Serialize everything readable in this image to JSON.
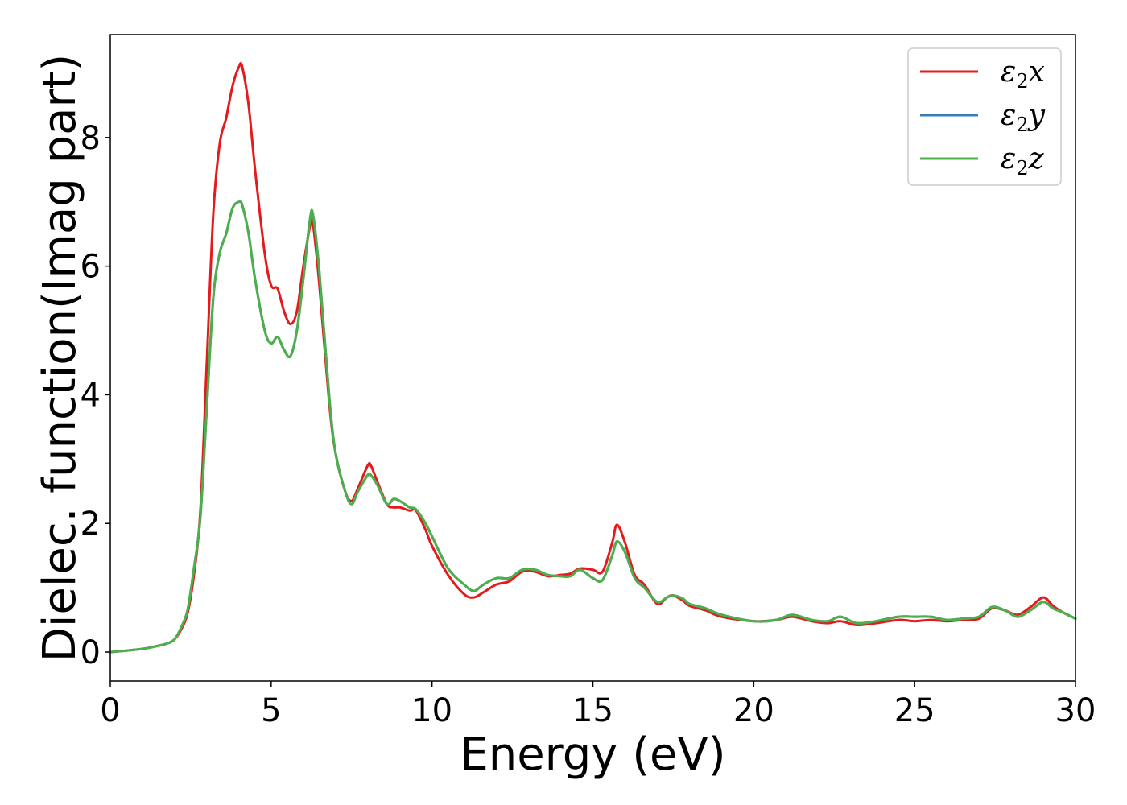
{
  "chart_data": {
    "type": "line",
    "xlabel": "Energy (eV)",
    "ylabel": "Dielec. function(Imag part)",
    "xlim": [
      0,
      30
    ],
    "ylim": [
      -0.45,
      9.6
    ],
    "xticks": [
      0,
      5,
      10,
      15,
      20,
      25,
      30
    ],
    "yticks": [
      0,
      2,
      4,
      6,
      8
    ],
    "grid": false,
    "legend_position": "top-right",
    "series": [
      {
        "name": "ε₂x",
        "legend_main": "ε",
        "legend_sub": "2",
        "legend_tail": "x",
        "color": "#e41a1c",
        "x": [
          0,
          1,
          1.5,
          1.8,
          2.0,
          2.2,
          2.4,
          2.6,
          2.8,
          3.0,
          3.2,
          3.4,
          3.6,
          3.8,
          4.0,
          4.1,
          4.3,
          4.5,
          4.8,
          5.0,
          5.2,
          5.4,
          5.6,
          5.8,
          6.0,
          6.2,
          6.3,
          6.5,
          6.8,
          7.0,
          7.3,
          7.5,
          7.7,
          8.0,
          8.1,
          8.3,
          8.6,
          8.8,
          9.0,
          9.3,
          9.5,
          9.8,
          10.0,
          10.5,
          11.0,
          11.3,
          11.6,
          12.0,
          12.4,
          12.8,
          13.2,
          13.6,
          14.0,
          14.3,
          14.6,
          15.0,
          15.3,
          15.6,
          15.75,
          16.0,
          16.3,
          16.6,
          17.0,
          17.3,
          17.5,
          17.8,
          18.0,
          18.5,
          19.0,
          20.0,
          20.7,
          21.2,
          21.8,
          22.3,
          22.7,
          23.2,
          23.8,
          24.5,
          25.0,
          25.5,
          26.0,
          26.5,
          27.0,
          27.4,
          27.8,
          28.2,
          28.6,
          29.0,
          29.3,
          29.6,
          30.0
        ],
        "y": [
          0.0,
          0.05,
          0.1,
          0.14,
          0.2,
          0.35,
          0.6,
          1.2,
          2.2,
          4.5,
          6.8,
          7.9,
          8.3,
          8.8,
          9.1,
          9.1,
          8.5,
          7.5,
          6.2,
          5.7,
          5.65,
          5.3,
          5.1,
          5.3,
          6.0,
          6.6,
          6.65,
          5.7,
          3.9,
          3.1,
          2.5,
          2.35,
          2.55,
          2.9,
          2.9,
          2.65,
          2.3,
          2.25,
          2.25,
          2.2,
          2.2,
          1.9,
          1.65,
          1.2,
          0.9,
          0.85,
          0.93,
          1.05,
          1.1,
          1.25,
          1.25,
          1.18,
          1.2,
          1.22,
          1.3,
          1.28,
          1.25,
          1.7,
          1.98,
          1.7,
          1.2,
          1.05,
          0.75,
          0.85,
          0.88,
          0.8,
          0.72,
          0.65,
          0.55,
          0.48,
          0.5,
          0.55,
          0.48,
          0.45,
          0.48,
          0.42,
          0.45,
          0.5,
          0.48,
          0.5,
          0.48,
          0.5,
          0.52,
          0.68,
          0.65,
          0.58,
          0.7,
          0.85,
          0.72,
          0.62,
          0.52
        ]
      },
      {
        "name": "ε₂y",
        "legend_main": "ε",
        "legend_sub": "2",
        "legend_tail": "y",
        "color": "#377eb8",
        "x": [
          0,
          1,
          1.5,
          1.8,
          2.0,
          2.2,
          2.4,
          2.6,
          2.8,
          3.0,
          3.2,
          3.4,
          3.6,
          3.8,
          4.0,
          4.1,
          4.3,
          4.5,
          4.8,
          5.0,
          5.2,
          5.4,
          5.6,
          5.8,
          6.0,
          6.2,
          6.3,
          6.5,
          6.8,
          7.0,
          7.3,
          7.5,
          7.7,
          8.0,
          8.1,
          8.3,
          8.6,
          8.8,
          9.0,
          9.3,
          9.5,
          9.8,
          10.0,
          10.5,
          11.0,
          11.3,
          11.6,
          12.0,
          12.4,
          12.8,
          13.2,
          13.6,
          14.0,
          14.3,
          14.6,
          15.0,
          15.3,
          15.6,
          15.75,
          16.0,
          16.3,
          16.6,
          17.0,
          17.3,
          17.5,
          17.8,
          18.0,
          18.5,
          19.0,
          20.0,
          20.7,
          21.2,
          21.8,
          22.3,
          22.7,
          23.2,
          23.8,
          24.5,
          25.0,
          25.5,
          26.0,
          26.5,
          27.0,
          27.4,
          27.8,
          28.2,
          28.6,
          29.0,
          29.3,
          29.6,
          30.0
        ],
        "y": [
          0.0,
          0.05,
          0.1,
          0.14,
          0.2,
          0.38,
          0.65,
          1.3,
          2.1,
          3.8,
          5.5,
          6.2,
          6.5,
          6.9,
          7.0,
          6.95,
          6.5,
          5.8,
          5.0,
          4.8,
          4.9,
          4.7,
          4.6,
          5.0,
          5.8,
          6.7,
          6.8,
          5.9,
          4.0,
          3.1,
          2.5,
          2.3,
          2.5,
          2.75,
          2.75,
          2.6,
          2.3,
          2.38,
          2.35,
          2.25,
          2.22,
          2.0,
          1.8,
          1.3,
          1.05,
          0.95,
          1.05,
          1.15,
          1.15,
          1.28,
          1.28,
          1.2,
          1.18,
          1.18,
          1.28,
          1.15,
          1.12,
          1.5,
          1.72,
          1.55,
          1.15,
          1.0,
          0.78,
          0.85,
          0.88,
          0.83,
          0.75,
          0.68,
          0.58,
          0.48,
          0.5,
          0.58,
          0.5,
          0.48,
          0.55,
          0.45,
          0.48,
          0.55,
          0.55,
          0.55,
          0.5,
          0.52,
          0.55,
          0.7,
          0.65,
          0.55,
          0.65,
          0.78,
          0.68,
          0.62,
          0.52
        ]
      },
      {
        "name": "ε₂z",
        "legend_main": "ε",
        "legend_sub": "2",
        "legend_tail": "z",
        "color": "#4daf4a",
        "x": [
          0,
          1,
          1.5,
          1.8,
          2.0,
          2.2,
          2.4,
          2.6,
          2.8,
          3.0,
          3.2,
          3.4,
          3.6,
          3.8,
          4.0,
          4.1,
          4.3,
          4.5,
          4.8,
          5.0,
          5.2,
          5.4,
          5.6,
          5.8,
          6.0,
          6.2,
          6.3,
          6.5,
          6.8,
          7.0,
          7.3,
          7.5,
          7.7,
          8.0,
          8.1,
          8.3,
          8.6,
          8.8,
          9.0,
          9.3,
          9.5,
          9.8,
          10.0,
          10.5,
          11.0,
          11.3,
          11.6,
          12.0,
          12.4,
          12.8,
          13.2,
          13.6,
          14.0,
          14.3,
          14.6,
          15.0,
          15.3,
          15.6,
          15.75,
          16.0,
          16.3,
          16.6,
          17.0,
          17.3,
          17.5,
          17.8,
          18.0,
          18.5,
          19.0,
          20.0,
          20.7,
          21.2,
          21.8,
          22.3,
          22.7,
          23.2,
          23.8,
          24.5,
          25.0,
          25.5,
          26.0,
          26.5,
          27.0,
          27.4,
          27.8,
          28.2,
          28.6,
          29.0,
          29.3,
          29.6,
          30.0
        ],
        "y": [
          0.0,
          0.05,
          0.1,
          0.14,
          0.2,
          0.38,
          0.65,
          1.3,
          2.1,
          3.8,
          5.5,
          6.2,
          6.5,
          6.9,
          7.0,
          6.95,
          6.5,
          5.8,
          5.0,
          4.8,
          4.9,
          4.7,
          4.6,
          5.0,
          5.8,
          6.7,
          6.8,
          5.9,
          4.0,
          3.1,
          2.5,
          2.3,
          2.5,
          2.75,
          2.75,
          2.6,
          2.3,
          2.38,
          2.35,
          2.25,
          2.22,
          2.0,
          1.8,
          1.3,
          1.05,
          0.95,
          1.05,
          1.15,
          1.15,
          1.28,
          1.28,
          1.2,
          1.18,
          1.18,
          1.28,
          1.15,
          1.12,
          1.5,
          1.72,
          1.55,
          1.15,
          1.0,
          0.78,
          0.85,
          0.88,
          0.83,
          0.75,
          0.68,
          0.58,
          0.48,
          0.5,
          0.58,
          0.5,
          0.48,
          0.55,
          0.45,
          0.48,
          0.55,
          0.55,
          0.55,
          0.5,
          0.52,
          0.55,
          0.7,
          0.65,
          0.55,
          0.65,
          0.78,
          0.68,
          0.62,
          0.52
        ]
      }
    ]
  }
}
